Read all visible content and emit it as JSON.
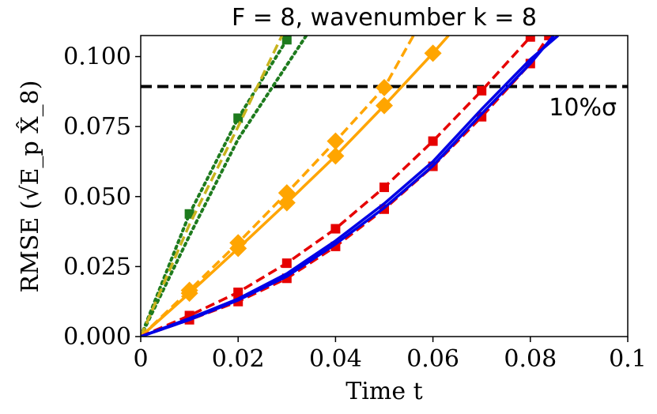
{
  "chart_data": {
    "type": "line",
    "title": "F = 8, wavenumber k = 8",
    "xlabel": "Time t",
    "ylabel": "RMSE (√E_p X̂_8)",
    "xlim": [
      0,
      0.1
    ],
    "ylim": [
      0,
      0.1075
    ],
    "xticks": [
      0,
      0.02,
      0.04,
      0.06,
      0.08,
      0.1
    ],
    "xtick_labels": [
      "0",
      "0.02",
      "0.04",
      "0.06",
      "0.08",
      "0.1"
    ],
    "yticks": [
      0,
      0.025,
      0.05,
      0.075,
      0.1
    ],
    "ytick_labels": [
      "0.000",
      "0.025",
      "0.050",
      "0.075",
      "0.100"
    ],
    "grid": false,
    "threshold": {
      "label": "10%σ",
      "value": 0.0893,
      "color": "#000000",
      "style": "dashed"
    },
    "series": [
      {
        "name": "green-dotted-markers",
        "color": "#1e7b1e",
        "style": "dotted",
        "marker": "square",
        "x": [
          0,
          0.01,
          0.02,
          0.03
        ],
        "y": [
          0,
          0.0438,
          0.078,
          0.106
        ]
      },
      {
        "name": "green-dotted",
        "color": "#1e7b1e",
        "style": "dotted",
        "marker": "none",
        "x": [
          0,
          0.01,
          0.02,
          0.034
        ],
        "y": [
          0,
          0.036,
          0.0705,
          0.1075
        ]
      },
      {
        "name": "olive-dashed",
        "color": "#c8b41e",
        "style": "dashed",
        "marker": "none",
        "x": [
          0,
          0.01,
          0.02,
          0.029
        ],
        "y": [
          0,
          0.04,
          0.075,
          0.1075
        ]
      },
      {
        "name": "orange-dashed-diamond",
        "color": "#ffa500",
        "style": "dashed",
        "marker": "diamond",
        "x": [
          0,
          0.01,
          0.02,
          0.03,
          0.04,
          0.05,
          0.056
        ],
        "y": [
          0,
          0.0165,
          0.0335,
          0.0513,
          0.0698,
          0.0889,
          0.1075
        ]
      },
      {
        "name": "orange-solid-diamond",
        "color": "#ffa500",
        "style": "solid",
        "marker": "diamond",
        "x": [
          0,
          0.01,
          0.02,
          0.03,
          0.04,
          0.05,
          0.06,
          0.0632
        ],
        "y": [
          0,
          0.0155,
          0.0315,
          0.0478,
          0.0645,
          0.0825,
          0.1012,
          0.1075
        ]
      },
      {
        "name": "red-dashed-markers",
        "color": "#e60000",
        "style": "dashed",
        "marker": "square",
        "x": [
          0,
          0.01,
          0.02,
          0.03,
          0.04,
          0.05,
          0.06,
          0.07,
          0.08
        ],
        "y": [
          0,
          0.0075,
          0.0158,
          0.0262,
          0.0385,
          0.0533,
          0.0698,
          0.0878,
          0.107
        ]
      },
      {
        "name": "red-dashed-markers-2",
        "color": "#e60000",
        "style": "dashed",
        "marker": "square",
        "x": [
          0,
          0.01,
          0.02,
          0.03,
          0.04,
          0.05,
          0.06,
          0.07,
          0.08,
          0.0838
        ],
        "y": [
          0,
          0.006,
          0.0125,
          0.0208,
          0.0322,
          0.0455,
          0.0608,
          0.0785,
          0.0975,
          0.1075
        ]
      },
      {
        "name": "blue-solid",
        "color": "#0000e6",
        "style": "solid",
        "marker": "none",
        "x": [
          0,
          0.01,
          0.02,
          0.03,
          0.04,
          0.05,
          0.06,
          0.07,
          0.08,
          0.0857
        ],
        "y": [
          0,
          0.0065,
          0.0135,
          0.0225,
          0.0342,
          0.0475,
          0.0625,
          0.0812,
          0.099,
          0.1075
        ]
      },
      {
        "name": "blue-solid-2",
        "color": "#0000e6",
        "style": "solid",
        "marker": "none",
        "x": [
          0,
          0.01,
          0.02,
          0.03,
          0.04,
          0.05,
          0.06,
          0.07,
          0.08,
          0.0848
        ],
        "y": [
          0,
          0.006,
          0.013,
          0.0215,
          0.033,
          0.046,
          0.061,
          0.0795,
          0.0975,
          0.1075
        ]
      }
    ]
  }
}
